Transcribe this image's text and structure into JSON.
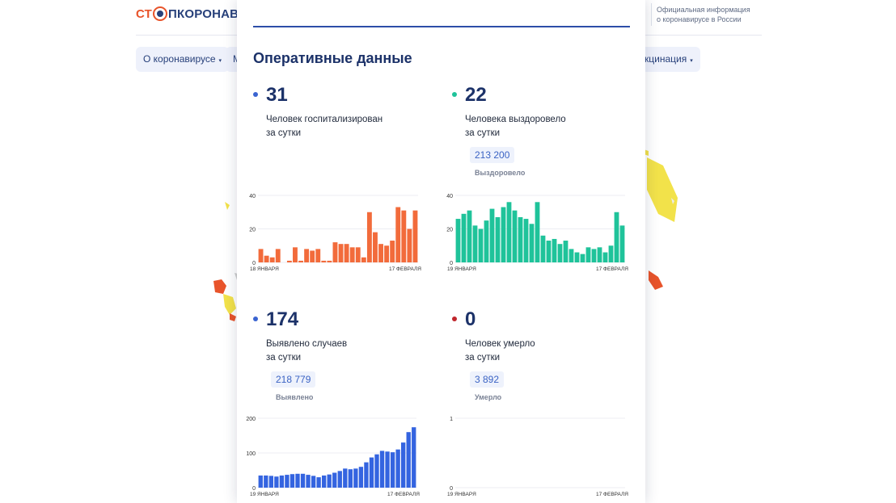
{
  "site": {
    "logo_stop": "СТ",
    "logo_rest": "ПКОРОНАВ",
    "header_info": "Официальная информация о коронавирусе в России",
    "nav": [
      {
        "label": "О коронавирусе",
        "caret": "▾"
      },
      {
        "label": "М"
      },
      {
        "label": "кцинация",
        "caret": "▾"
      }
    ]
  },
  "card": {
    "title": "Оперативные данные",
    "stats": [
      {
        "value": "31",
        "desc_line1": "Человек госпитализирован",
        "desc_line2": "за сутки",
        "color": "#3a64d1"
      },
      {
        "value": "22",
        "desc_line1": "Человека выздоровело",
        "desc_line2": "за сутки",
        "total": "213 200",
        "total_label": "Выздоровело",
        "color": "#1fc39a"
      },
      {
        "value": "174",
        "desc_line1": "Выявлено случаев",
        "desc_line2": "за сутки",
        "total": "218 779",
        "total_label": "Выявлено",
        "color": "#3a64d1"
      },
      {
        "value": "0",
        "desc_line1": "Человек умерло",
        "desc_line2": "за сутки",
        "total": "3 892",
        "total_label": "Умерло",
        "color": "#c0262d"
      }
    ]
  },
  "chart_data": [
    {
      "type": "bar",
      "name": "hospitalized",
      "color": "#f26b3b",
      "ylim": [
        0,
        40
      ],
      "yticks": [
        0,
        20,
        40
      ],
      "x_start_label": "18 ЯНВАРЯ",
      "x_end_label": "17 ФЕВРАЛЯ",
      "values": [
        8,
        4,
        3,
        8,
        0,
        1,
        9,
        1,
        8,
        7,
        8,
        1,
        1,
        12,
        11,
        11,
        9,
        9,
        3,
        30,
        18,
        11,
        10,
        13,
        33,
        31,
        20,
        31
      ]
    },
    {
      "type": "bar",
      "name": "recovered",
      "color": "#1fc39a",
      "ylim": [
        0,
        40
      ],
      "yticks": [
        0,
        20,
        40
      ],
      "x_start_label": "19 ЯНВАРЯ",
      "x_end_label": "17 ФЕВРАЛЯ",
      "values": [
        26,
        29,
        31,
        22,
        20,
        25,
        32,
        27,
        33,
        36,
        31,
        27,
        26,
        23,
        36,
        16,
        13,
        14,
        11,
        13,
        8,
        6,
        5,
        9,
        8,
        9,
        6,
        10,
        30,
        22
      ]
    },
    {
      "type": "bar",
      "name": "detected",
      "color": "#3464e0",
      "ylim": [
        0,
        200
      ],
      "yticks": [
        0,
        100,
        200
      ],
      "x_start_label": "19 ЯНВАРЯ",
      "x_end_label": "17 ФЕВРАЛЯ",
      "values": [
        35,
        35,
        34,
        32,
        35,
        37,
        39,
        40,
        40,
        37,
        34,
        30,
        35,
        38,
        43,
        48,
        55,
        53,
        55,
        60,
        73,
        87,
        96,
        106,
        104,
        102,
        110,
        130,
        160,
        174
      ]
    },
    {
      "type": "bar",
      "name": "deaths",
      "color": "#c0262d",
      "ylim": [
        0,
        1
      ],
      "yticks": [
        0,
        1
      ],
      "x_start_label": "19 ЯНВАРЯ",
      "x_end_label": "17 ФЕВРАЛЯ",
      "values": [
        0,
        0,
        0,
        0,
        0,
        0,
        0,
        0,
        0,
        0,
        0,
        0,
        0,
        0,
        0,
        0,
        0,
        0,
        0,
        0,
        0,
        0,
        0,
        0,
        0,
        0,
        0,
        0,
        0,
        0
      ]
    }
  ]
}
